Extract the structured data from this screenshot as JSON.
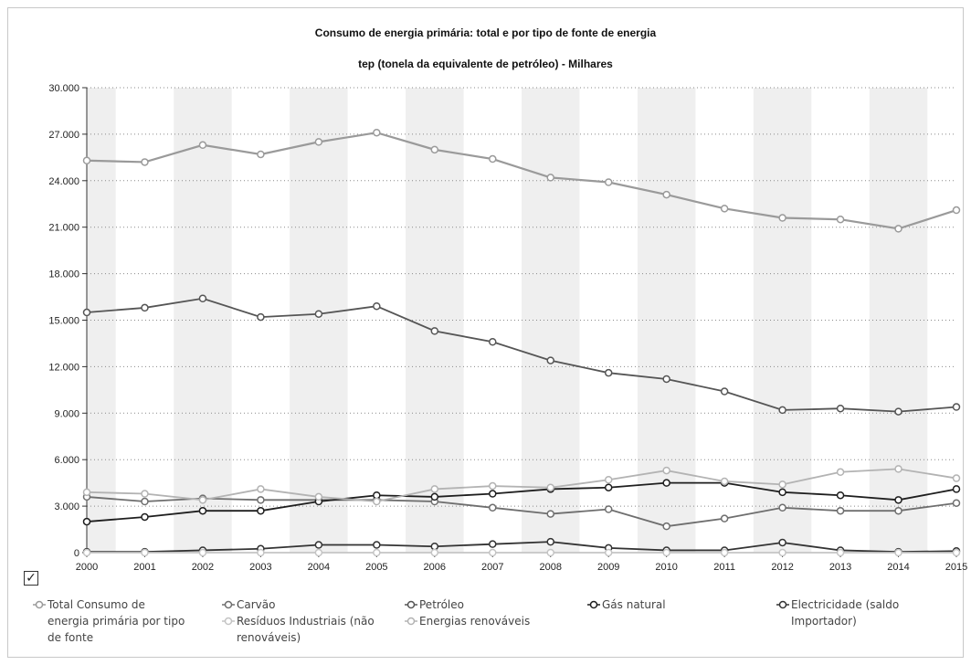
{
  "chart_data": {
    "type": "line",
    "title": "Consumo de energia primária: total e por tipo de fonte de energia",
    "subtitle": "tep (tonela da equivalente de petróleo) - Milhares",
    "x": [
      "2000",
      "2001",
      "2002",
      "2003",
      "2004",
      "2005",
      "2006",
      "2007",
      "2008",
      "2009",
      "2010",
      "2011",
      "2012",
      "2013",
      "2014",
      "2015"
    ],
    "ylim": [
      0,
      30000
    ],
    "y_ticks": [
      "0",
      "3.000",
      "6.000",
      "9.000",
      "12.000",
      "15.000",
      "18.000",
      "21.000",
      "24.000",
      "27.000",
      "30.000"
    ],
    "y_tick_values": [
      0,
      3000,
      6000,
      9000,
      12000,
      15000,
      18000,
      21000,
      24000,
      27000,
      30000
    ],
    "grid": "horizontal dotted",
    "legend_position": "bottom",
    "series": [
      {
        "name": "Total Consumo de energia primária por tipo de fonte",
        "color": "#9a9a9a",
        "values": [
          25300,
          25200,
          26300,
          25700,
          26500,
          27100,
          26000,
          25400,
          24200,
          23900,
          23100,
          22200,
          21600,
          21500,
          20900,
          22100
        ]
      },
      {
        "name": "Carvão",
        "color": "#6e6e6e",
        "values": [
          3600,
          3300,
          3500,
          3400,
          3400,
          3400,
          3300,
          2900,
          2500,
          2800,
          1700,
          2200,
          2900,
          2700,
          2700,
          3200
        ]
      },
      {
        "name": "Petróleo",
        "color": "#555555",
        "values": [
          15500,
          15800,
          16400,
          15200,
          15400,
          15900,
          14300,
          13600,
          12400,
          11600,
          11200,
          10400,
          9200,
          9300,
          9100,
          9400
        ]
      },
      {
        "name": "Gás natural",
        "color": "#1e1e1e",
        "values": [
          2000,
          2300,
          2700,
          2700,
          3300,
          3700,
          3600,
          3800,
          4100,
          4200,
          4500,
          4500,
          3900,
          3700,
          3400,
          4100
        ]
      },
      {
        "name": "Electricidade (saldo Importador)",
        "color": "#333333",
        "values": [
          50,
          50,
          150,
          250,
          500,
          500,
          400,
          550,
          700,
          300,
          150,
          150,
          650,
          150,
          50,
          100
        ]
      },
      {
        "name": "Resíduos Industriais (não renováveis)",
        "color": "#c4c4c4",
        "values": [
          0,
          0,
          0,
          0,
          0,
          0,
          0,
          0,
          0,
          0,
          0,
          0,
          0,
          0,
          0,
          0
        ]
      },
      {
        "name": "Energias renováveis",
        "color": "#b3b3b3",
        "values": [
          3900,
          3800,
          3400,
          4100,
          3600,
          3300,
          4100,
          4300,
          4200,
          4700,
          5300,
          4600,
          4400,
          5200,
          5400,
          4800
        ]
      }
    ]
  },
  "legend": {
    "checkbox": "✓",
    "items": [
      {
        "line1": "Total Consumo de",
        "line2": "energia primária por tipo",
        "line3": "de fonte"
      },
      {
        "line1": "Carvão"
      },
      {
        "line1": "Petróleo"
      },
      {
        "line1": "Gás natural"
      },
      {
        "line1": "Electricidade (saldo",
        "line2": "Importador)"
      },
      {
        "line1": "Resíduos Industriais (não",
        "line2": "renováveis)"
      },
      {
        "line1": "Energias renováveis"
      }
    ]
  }
}
